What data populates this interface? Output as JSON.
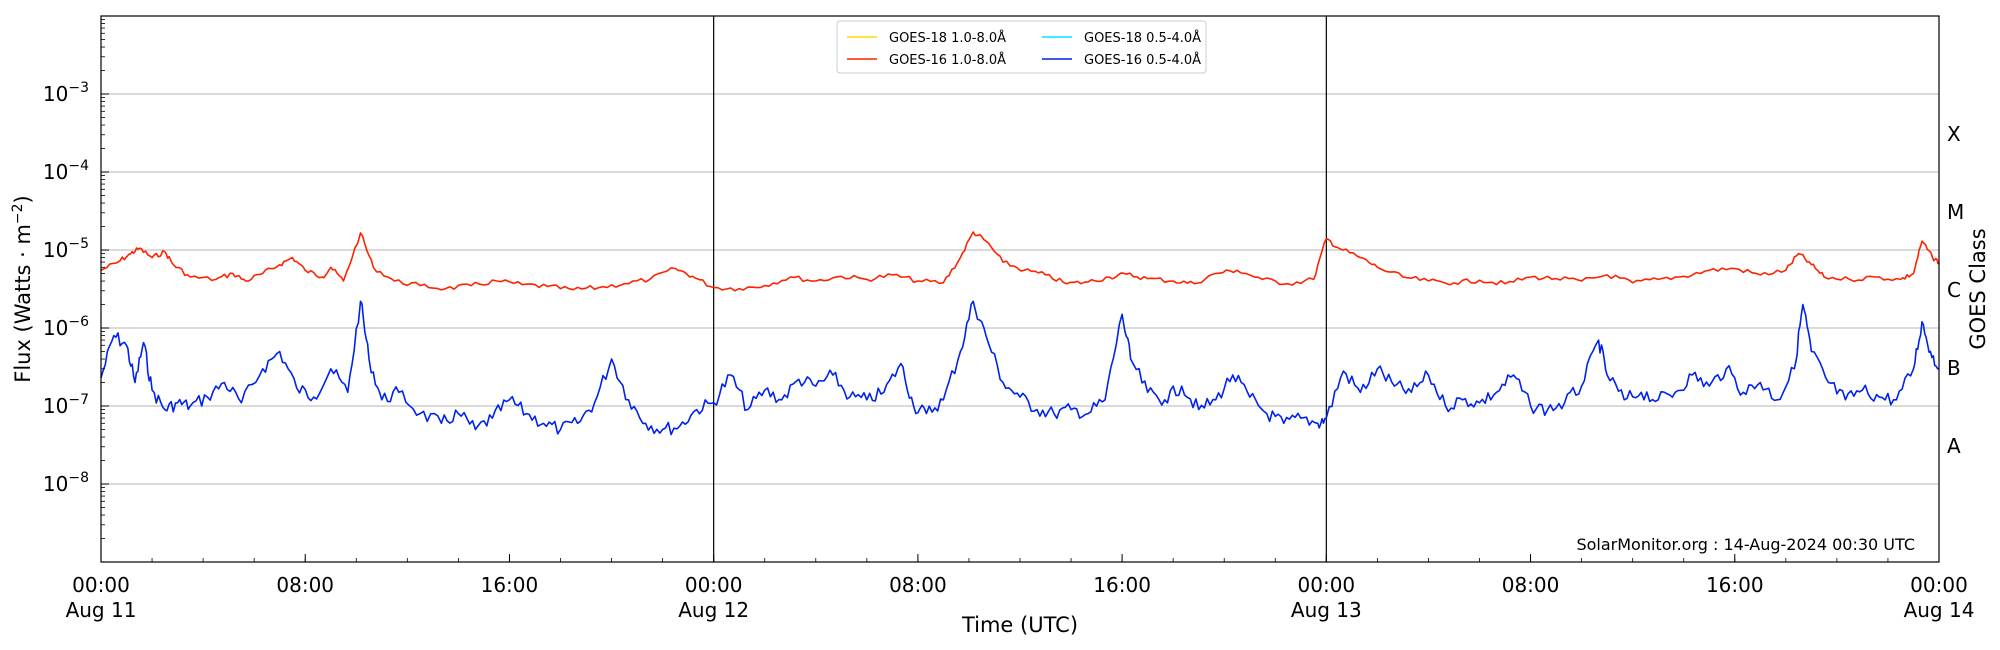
{
  "chart_data": {
    "type": "line",
    "title": "",
    "xlabel": "Time (UTC)",
    "ylabel": "Flux (Watts · m",
    "ylabel_sup": "−2",
    "ylabel_close": ")",
    "y_scale": "log",
    "ylim": [
      1e-09,
      0.01
    ],
    "y_ticks": [
      {
        "value": 1e-08,
        "base": "10",
        "exp": "−8"
      },
      {
        "value": 1e-07,
        "base": "10",
        "exp": "−7"
      },
      {
        "value": 1e-06,
        "base": "10",
        "exp": "−6"
      },
      {
        "value": 1e-05,
        "base": "10",
        "exp": "−5"
      },
      {
        "value": 0.0001,
        "base": "10",
        "exp": "−4"
      },
      {
        "value": 0.001,
        "base": "10",
        "exp": "−3"
      }
    ],
    "xlim": [
      "2024-08-11 00:00",
      "2024-08-14 00:00"
    ],
    "x_ticks": [
      {
        "time": "2024-08-11 00:00",
        "label": "00:00",
        "date": "Aug 11"
      },
      {
        "time": "2024-08-11 08:00",
        "label": "08:00",
        "date": ""
      },
      {
        "time": "2024-08-11 16:00",
        "label": "16:00",
        "date": ""
      },
      {
        "time": "2024-08-12 00:00",
        "label": "00:00",
        "date": "Aug 12"
      },
      {
        "time": "2024-08-12 08:00",
        "label": "08:00",
        "date": ""
      },
      {
        "time": "2024-08-12 16:00",
        "label": "16:00",
        "date": ""
      },
      {
        "time": "2024-08-13 00:00",
        "label": "00:00",
        "date": "Aug 13"
      },
      {
        "time": "2024-08-13 08:00",
        "label": "08:00",
        "date": ""
      },
      {
        "time": "2024-08-13 16:00",
        "label": "16:00",
        "date": ""
      },
      {
        "time": "2024-08-14 00:00",
        "label": "00:00",
        "date": "Aug 14"
      }
    ],
    "day_boundaries": [
      "2024-08-12 00:00",
      "2024-08-13 00:00"
    ],
    "grid": true,
    "legend_position": "top-center",
    "right_axis": {
      "label": "GOES Class",
      "classes": [
        {
          "name": "A",
          "value": 1e-08
        },
        {
          "name": "B",
          "value": 1e-07
        },
        {
          "name": "C",
          "value": 1e-06
        },
        {
          "name": "M",
          "value": 1e-05
        },
        {
          "name": "X",
          "value": 0.0001
        }
      ]
    },
    "annotation": "SolarMonitor.org : 14-Aug-2024 00:30 UTC",
    "series": [
      {
        "name": "GOES-18 1.0-8.0Å",
        "color": "#ffd700",
        "values": []
      },
      {
        "name": "GOES-16 1.0-8.0Å",
        "color": "#ff2200",
        "points": [
          [
            "2024-08-11 00:00",
            5.5e-06
          ],
          [
            "2024-08-11 00:40",
            7e-06
          ],
          [
            "2024-08-11 01:10",
            9e-06
          ],
          [
            "2024-08-11 01:30",
            1.05e-05
          ],
          [
            "2024-08-11 02:00",
            8e-06
          ],
          [
            "2024-08-11 02:30",
            9.5e-06
          ],
          [
            "2024-08-11 02:50",
            6.5e-06
          ],
          [
            "2024-08-11 03:30",
            4.5e-06
          ],
          [
            "2024-08-11 04:30",
            4.2e-06
          ],
          [
            "2024-08-11 05:10",
            5e-06
          ],
          [
            "2024-08-11 05:40",
            4e-06
          ],
          [
            "2024-08-11 06:20",
            5e-06
          ],
          [
            "2024-08-11 07:00",
            6.5e-06
          ],
          [
            "2024-08-11 07:30",
            8e-06
          ],
          [
            "2024-08-11 08:00",
            5.5e-06
          ],
          [
            "2024-08-11 08:40",
            4.5e-06
          ],
          [
            "2024-08-11 09:00",
            6e-06
          ],
          [
            "2024-08-11 09:30",
            4e-06
          ],
          [
            "2024-08-11 10:10",
            1.65e-05
          ],
          [
            "2024-08-11 10:40",
            6e-06
          ],
          [
            "2024-08-11 11:30",
            4e-06
          ],
          [
            "2024-08-11 12:30",
            3.5e-06
          ],
          [
            "2024-08-11 13:30",
            3.2e-06
          ],
          [
            "2024-08-11 14:30",
            3.5e-06
          ],
          [
            "2024-08-11 15:30",
            4e-06
          ],
          [
            "2024-08-11 16:30",
            3.6e-06
          ],
          [
            "2024-08-11 17:30",
            3.4e-06
          ],
          [
            "2024-08-11 18:30",
            3.1e-06
          ],
          [
            "2024-08-11 19:30",
            3.3e-06
          ],
          [
            "2024-08-11 20:30",
            3.7e-06
          ],
          [
            "2024-08-11 21:30",
            4.2e-06
          ],
          [
            "2024-08-11 22:30",
            5.8e-06
          ],
          [
            "2024-08-11 23:10",
            4.6e-06
          ],
          [
            "2024-08-12 00:00",
            3.3e-06
          ],
          [
            "2024-08-12 01:00",
            3.2e-06
          ],
          [
            "2024-08-12 02:00",
            3.5e-06
          ],
          [
            "2024-08-12 03:00",
            4.5e-06
          ],
          [
            "2024-08-12 04:00",
            4e-06
          ],
          [
            "2024-08-12 05:00",
            4.6e-06
          ],
          [
            "2024-08-12 06:00",
            4.2e-06
          ],
          [
            "2024-08-12 07:00",
            4.8e-06
          ],
          [
            "2024-08-12 08:00",
            4e-06
          ],
          [
            "2024-08-12 09:00",
            3.8e-06
          ],
          [
            "2024-08-12 09:40",
            8e-06
          ],
          [
            "2024-08-12 10:10",
            1.7e-05
          ],
          [
            "2024-08-12 10:40",
            1.3e-05
          ],
          [
            "2024-08-12 11:20",
            7e-06
          ],
          [
            "2024-08-12 12:10",
            5.5e-06
          ],
          [
            "2024-08-12 13:00",
            4.8e-06
          ],
          [
            "2024-08-12 13:50",
            3.7e-06
          ],
          [
            "2024-08-12 14:40",
            3.9e-06
          ],
          [
            "2024-08-12 15:30",
            4.5e-06
          ],
          [
            "2024-08-12 16:10",
            4.9e-06
          ],
          [
            "2024-08-12 17:00",
            4.3e-06
          ],
          [
            "2024-08-12 18:00",
            4e-06
          ],
          [
            "2024-08-12 18:50",
            3.7e-06
          ],
          [
            "2024-08-12 19:40",
            5e-06
          ],
          [
            "2024-08-12 20:30",
            5.5e-06
          ],
          [
            "2024-08-12 21:30",
            4.2e-06
          ],
          [
            "2024-08-12 22:30",
            3.7e-06
          ],
          [
            "2024-08-12 23:30",
            4.2e-06
          ],
          [
            "2024-08-13 00:00",
            1.4e-05
          ],
          [
            "2024-08-13 00:30",
            1.05e-05
          ],
          [
            "2024-08-13 01:20",
            8e-06
          ],
          [
            "2024-08-13 02:00",
            6e-06
          ],
          [
            "2024-08-13 03:00",
            4.5e-06
          ],
          [
            "2024-08-13 04:00",
            4e-06
          ],
          [
            "2024-08-13 05:00",
            3.8e-06
          ],
          [
            "2024-08-13 06:00",
            4.1e-06
          ],
          [
            "2024-08-13 07:00",
            3.7e-06
          ],
          [
            "2024-08-13 08:00",
            4.5e-06
          ],
          [
            "2024-08-13 09:00",
            4.3e-06
          ],
          [
            "2024-08-13 10:00",
            4e-06
          ],
          [
            "2024-08-13 11:00",
            4.8e-06
          ],
          [
            "2024-08-13 12:00",
            3.8e-06
          ],
          [
            "2024-08-13 13:00",
            4.2e-06
          ],
          [
            "2024-08-13 14:00",
            4.6e-06
          ],
          [
            "2024-08-13 15:00",
            5.5e-06
          ],
          [
            "2024-08-13 16:00",
            5.8e-06
          ],
          [
            "2024-08-13 17:00",
            4.8e-06
          ],
          [
            "2024-08-13 18:00",
            5.5e-06
          ],
          [
            "2024-08-13 18:30",
            9e-06
          ],
          [
            "2024-08-13 19:00",
            6.5e-06
          ],
          [
            "2024-08-13 19:30",
            4.5e-06
          ],
          [
            "2024-08-13 20:30",
            4.2e-06
          ],
          [
            "2024-08-13 21:30",
            4.5e-06
          ],
          [
            "2024-08-13 22:30",
            4.2e-06
          ],
          [
            "2024-08-13 23:00",
            5e-06
          ],
          [
            "2024-08-13 23:20",
            1.3e-05
          ],
          [
            "2024-08-13 23:45",
            8e-06
          ],
          [
            "2024-08-14 00:00",
            7e-06
          ]
        ]
      },
      {
        "name": "GOES-18 0.5-4.0Å",
        "color": "#00e5ff",
        "values": []
      },
      {
        "name": "GOES-16 0.5-4.0Å",
        "color": "#0022ee",
        "points": [
          [
            "2024-08-11 00:00",
            2.3e-07
          ],
          [
            "2024-08-11 00:30",
            8e-07
          ],
          [
            "2024-08-11 01:00",
            6e-07
          ],
          [
            "2024-08-11 01:20",
            2e-07
          ],
          [
            "2024-08-11 01:40",
            6.5e-07
          ],
          [
            "2024-08-11 02:00",
            1.6e-07
          ],
          [
            "2024-08-11 02:30",
            9e-08
          ],
          [
            "2024-08-11 03:00",
            1.1e-07
          ],
          [
            "2024-08-11 03:30",
            1e-07
          ],
          [
            "2024-08-11 04:10",
            1.3e-07
          ],
          [
            "2024-08-11 04:50",
            2e-07
          ],
          [
            "2024-08-11 05:30",
            1.1e-07
          ],
          [
            "2024-08-11 06:20",
            3e-07
          ],
          [
            "2024-08-11 07:00",
            5e-07
          ],
          [
            "2024-08-11 07:40",
            1.7e-07
          ],
          [
            "2024-08-11 08:20",
            1.3e-07
          ],
          [
            "2024-08-11 09:00",
            3e-07
          ],
          [
            "2024-08-11 09:40",
            1.5e-07
          ],
          [
            "2024-08-11 10:10",
            2.2e-06
          ],
          [
            "2024-08-11 10:30",
            4e-07
          ],
          [
            "2024-08-11 11:00",
            1.2e-07
          ],
          [
            "2024-08-11 11:40",
            1.5e-07
          ],
          [
            "2024-08-11 12:30",
            8e-08
          ],
          [
            "2024-08-11 13:20",
            6e-08
          ],
          [
            "2024-08-11 14:00",
            8e-08
          ],
          [
            "2024-08-11 14:40",
            5e-08
          ],
          [
            "2024-08-11 15:20",
            7e-08
          ],
          [
            "2024-08-11 16:00",
            1.2e-07
          ],
          [
            "2024-08-11 16:40",
            8e-08
          ],
          [
            "2024-08-11 17:20",
            6e-08
          ],
          [
            "2024-08-11 18:00",
            5e-08
          ],
          [
            "2024-08-11 18:40",
            6e-08
          ],
          [
            "2024-08-11 19:20",
            1.1e-07
          ],
          [
            "2024-08-11 20:00",
            4e-07
          ],
          [
            "2024-08-11 20:40",
            1.2e-07
          ],
          [
            "2024-08-11 21:20",
            6e-08
          ],
          [
            "2024-08-11 22:00",
            5e-08
          ],
          [
            "2024-08-11 22:40",
            5.5e-08
          ],
          [
            "2024-08-11 23:20",
            9e-08
          ],
          [
            "2024-08-12 00:00",
            1.1e-07
          ],
          [
            "2024-08-12 00:40",
            2.5e-07
          ],
          [
            "2024-08-12 01:20",
            9e-08
          ],
          [
            "2024-08-12 02:00",
            1.6e-07
          ],
          [
            "2024-08-12 02:40",
            1.2e-07
          ],
          [
            "2024-08-12 03:20",
            2.2e-07
          ],
          [
            "2024-08-12 04:00",
            1.8e-07
          ],
          [
            "2024-08-12 04:40",
            2.5e-07
          ],
          [
            "2024-08-12 05:20",
            1.3e-07
          ],
          [
            "2024-08-12 06:00",
            1.2e-07
          ],
          [
            "2024-08-12 06:40",
            1.5e-07
          ],
          [
            "2024-08-12 07:20",
            3.5e-07
          ],
          [
            "2024-08-12 07:50",
            1e-07
          ],
          [
            "2024-08-12 08:20",
            8e-08
          ],
          [
            "2024-08-12 09:00",
            1.2e-07
          ],
          [
            "2024-08-12 09:40",
            5e-07
          ],
          [
            "2024-08-12 10:10",
            2.2e-06
          ],
          [
            "2024-08-12 10:40",
            8e-07
          ],
          [
            "2024-08-12 11:20",
            2e-07
          ],
          [
            "2024-08-12 12:00",
            1.3e-07
          ],
          [
            "2024-08-12 12:40",
            9e-08
          ],
          [
            "2024-08-12 13:20",
            8e-08
          ],
          [
            "2024-08-12 14:00",
            9e-08
          ],
          [
            "2024-08-12 14:40",
            8e-08
          ],
          [
            "2024-08-12 15:20",
            1.2e-07
          ],
          [
            "2024-08-12 16:00",
            1.5e-06
          ],
          [
            "2024-08-12 16:20",
            4e-07
          ],
          [
            "2024-08-12 17:00",
            1.5e-07
          ],
          [
            "2024-08-12 17:40",
            1.2e-07
          ],
          [
            "2024-08-12 18:20",
            1.8e-07
          ],
          [
            "2024-08-12 19:00",
            9e-08
          ],
          [
            "2024-08-12 19:40",
            1.2e-07
          ],
          [
            "2024-08-12 20:20",
            2.5e-07
          ],
          [
            "2024-08-12 21:00",
            1.3e-07
          ],
          [
            "2024-08-12 21:40",
            8e-08
          ],
          [
            "2024-08-12 22:20",
            6e-08
          ],
          [
            "2024-08-12 23:00",
            7e-08
          ],
          [
            "2024-08-12 23:40",
            6e-08
          ],
          [
            "2024-08-13 00:00",
            7e-08
          ],
          [
            "2024-08-13 00:40",
            2.8e-07
          ],
          [
            "2024-08-13 01:20",
            1.5e-07
          ],
          [
            "2024-08-13 02:00",
            3e-07
          ],
          [
            "2024-08-13 02:40",
            1.8e-07
          ],
          [
            "2024-08-13 03:20",
            1.5e-07
          ],
          [
            "2024-08-13 04:00",
            2.5e-07
          ],
          [
            "2024-08-13 04:40",
            1e-07
          ],
          [
            "2024-08-13 05:20",
            1.2e-07
          ],
          [
            "2024-08-13 06:00",
            1.1e-07
          ],
          [
            "2024-08-13 06:40",
            1.5e-07
          ],
          [
            "2024-08-13 07:20",
            2.5e-07
          ],
          [
            "2024-08-13 08:00",
            1e-07
          ],
          [
            "2024-08-13 08:40",
            9e-08
          ],
          [
            "2024-08-13 09:20",
            1.1e-07
          ],
          [
            "2024-08-13 10:00",
            1.8e-07
          ],
          [
            "2024-08-13 10:40",
            7e-07
          ],
          [
            "2024-08-13 11:00",
            2.5e-07
          ],
          [
            "2024-08-13 11:40",
            1.2e-07
          ],
          [
            "2024-08-13 12:20",
            1.5e-07
          ],
          [
            "2024-08-13 13:00",
            1.2e-07
          ],
          [
            "2024-08-13 13:40",
            1.5e-07
          ],
          [
            "2024-08-13 14:20",
            2.5e-07
          ],
          [
            "2024-08-13 15:00",
            1.8e-07
          ],
          [
            "2024-08-13 15:40",
            3e-07
          ],
          [
            "2024-08-13 16:20",
            1.5e-07
          ],
          [
            "2024-08-13 17:00",
            2e-07
          ],
          [
            "2024-08-13 17:40",
            1.2e-07
          ],
          [
            "2024-08-13 18:20",
            3e-07
          ],
          [
            "2024-08-13 18:40",
            2e-06
          ],
          [
            "2024-08-13 19:00",
            5e-07
          ],
          [
            "2024-08-13 19:40",
            2e-07
          ],
          [
            "2024-08-13 20:20",
            1.2e-07
          ],
          [
            "2024-08-13 21:00",
            1.6e-07
          ],
          [
            "2024-08-13 21:40",
            1.3e-07
          ],
          [
            "2024-08-13 22:20",
            1.2e-07
          ],
          [
            "2024-08-13 23:00",
            3e-07
          ],
          [
            "2024-08-13 23:20",
            1.2e-06
          ],
          [
            "2024-08-13 23:40",
            5e-07
          ],
          [
            "2024-08-14 00:00",
            3e-07
          ]
        ]
      }
    ]
  }
}
